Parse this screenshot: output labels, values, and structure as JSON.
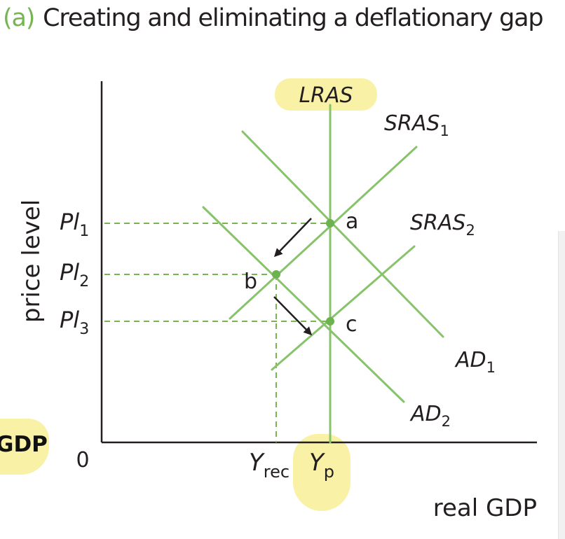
{
  "header": {
    "tag": "(a)",
    "title": "Creating and eliminating a deflationary gap"
  },
  "axes": {
    "y_label": "price level",
    "x_label": "real GDP",
    "origin": "0"
  },
  "price_levels": [
    {
      "main": "Pl",
      "sub": "1"
    },
    {
      "main": "Pl",
      "sub": "2"
    },
    {
      "main": "Pl",
      "sub": "3"
    }
  ],
  "outputs": [
    {
      "main": "Y",
      "sub": "rec"
    },
    {
      "main": "Y",
      "sub": "p"
    }
  ],
  "curves": {
    "lras": "LRAS",
    "sras1": {
      "main": "SRAS",
      "sub": "1"
    },
    "sras2": {
      "main": "SRAS",
      "sub": "2"
    },
    "ad1": {
      "main": "AD",
      "sub": "1"
    },
    "ad2": {
      "main": "AD",
      "sub": "2"
    }
  },
  "points": [
    "a",
    "b",
    "c"
  ],
  "cropped_label": "GDP",
  "colors": {
    "curve": "#87c36b",
    "point": "#6cb24e",
    "highlight": "#f9f1a5",
    "axis": "#231f20",
    "tag": "#76b552"
  }
}
